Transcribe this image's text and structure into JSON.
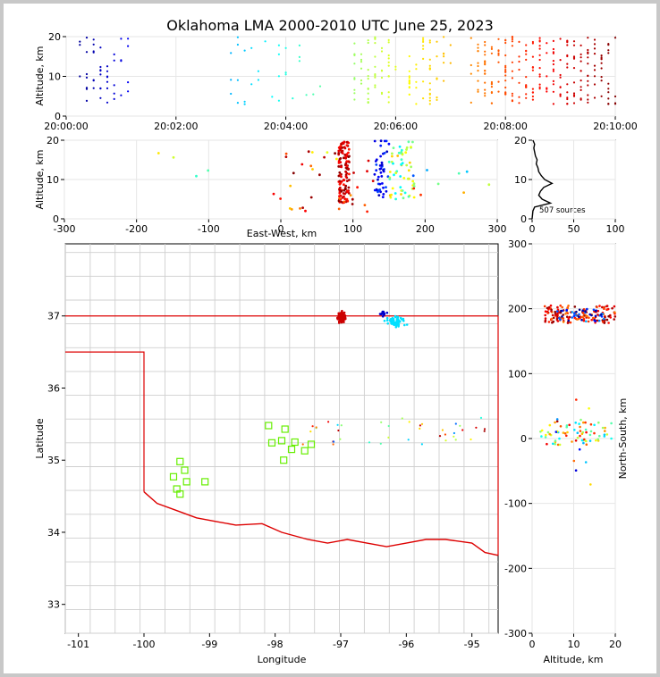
{
  "title": "Oklahoma LMA 2000-2010 UTC June 25, 2023",
  "chart_data": [
    {
      "id": "time_height",
      "type": "scatter",
      "xlabel": "",
      "ylabel": "Altitude, km",
      "x_ticks": [
        "20:00:00",
        "20:02:00",
        "20:04:00",
        "20:06:00",
        "20:08:00",
        "20:10:00"
      ],
      "xlim_minutes": [
        0,
        10
      ],
      "ylim": [
        0,
        20
      ],
      "y_ticks": [
        0,
        10,
        20
      ],
      "color_scale": "jet by time",
      "point_groups": [
        {
          "t_min": [
            0.2,
            1.2
          ],
          "count": 45
        },
        {
          "t_min": [
            3.0,
            4.8
          ],
          "count": 30
        },
        {
          "t_min": [
            5.2,
            6.0
          ],
          "count": 60
        },
        {
          "t_min": [
            6.2,
            7.0
          ],
          "count": 55
        },
        {
          "t_min": [
            7.4,
            10.0
          ],
          "count": 230
        }
      ]
    },
    {
      "id": "ew_height",
      "type": "scatter",
      "xlabel": "East-West, km",
      "ylabel": "Altitude, km",
      "xlim": [
        -300,
        300
      ],
      "x_ticks": [
        -300,
        -200,
        -100,
        0,
        100,
        200,
        300
      ],
      "ylim": [
        0,
        20
      ],
      "y_ticks": [
        0,
        10,
        20
      ]
    },
    {
      "id": "altitude_histogram",
      "type": "line",
      "xlim": [
        0,
        100
      ],
      "x_ticks": [
        0,
        50,
        100
      ],
      "ylim": [
        0,
        20
      ],
      "y_ticks": [
        0,
        10,
        20
      ],
      "annotation": "507 sources",
      "altitude_km": [
        0,
        2,
        3,
        4,
        5,
        6,
        7,
        8,
        9,
        10,
        11,
        12,
        13,
        14,
        15,
        16,
        17,
        18,
        19,
        20
      ],
      "counts": [
        0,
        1,
        3,
        22,
        12,
        8,
        10,
        14,
        24,
        15,
        11,
        8,
        7,
        5,
        6,
        4,
        3,
        2,
        3,
        1
      ]
    },
    {
      "id": "plan_view",
      "type": "scatter",
      "xlabel": "Longitude",
      "ylabel": "Latitude",
      "xlim": [
        -101.2,
        -94.6
      ],
      "x_ticks": [
        -101,
        -100,
        -99,
        -98,
        -97,
        -96,
        -95
      ],
      "ylim": [
        32.6,
        38.0
      ],
      "y_ticks": [
        33,
        34,
        35,
        36,
        37
      ],
      "stations": [
        {
          "lon": -98.1,
          "lat": 35.48
        },
        {
          "lon": -97.85,
          "lat": 35.43
        },
        {
          "lon": -97.9,
          "lat": 35.27
        },
        {
          "lon": -98.05,
          "lat": 35.24
        },
        {
          "lon": -97.7,
          "lat": 35.25
        },
        {
          "lon": -97.75,
          "lat": 35.15
        },
        {
          "lon": -97.45,
          "lat": 35.22
        },
        {
          "lon": -97.55,
          "lat": 35.13
        },
        {
          "lon": -97.87,
          "lat": 35.0
        },
        {
          "lon": -99.45,
          "lat": 34.98
        },
        {
          "lon": -99.38,
          "lat": 34.86
        },
        {
          "lon": -99.55,
          "lat": 34.77
        },
        {
          "lon": -99.35,
          "lat": 34.7
        },
        {
          "lon": -99.5,
          "lat": 34.6
        },
        {
          "lon": -99.45,
          "lat": 34.53
        },
        {
          "lon": -99.07,
          "lat": 34.7
        }
      ],
      "clusters": [
        {
          "lon": -96.98,
          "lat": 36.98,
          "spread": [
            0.08,
            0.1
          ],
          "count": 170,
          "color": "#cc0000"
        },
        {
          "lon": -96.15,
          "lat": 36.92,
          "spread": [
            0.2,
            0.1
          ],
          "count": 60,
          "color": "#00e0ff"
        },
        {
          "lon": -96.35,
          "lat": 37.03,
          "spread": [
            0.06,
            0.05
          ],
          "count": 20,
          "color": "#0000cc"
        }
      ]
    },
    {
      "id": "ns_height",
      "type": "scatter",
      "xlabel": "Altitude, km",
      "ylabel": "North-South, km",
      "xlim": [
        0,
        20
      ],
      "x_ticks": [
        0,
        10,
        20
      ],
      "ylim": [
        -300,
        300
      ],
      "y_ticks": [
        -300,
        -200,
        -100,
        0,
        100,
        200,
        300
      ]
    }
  ]
}
